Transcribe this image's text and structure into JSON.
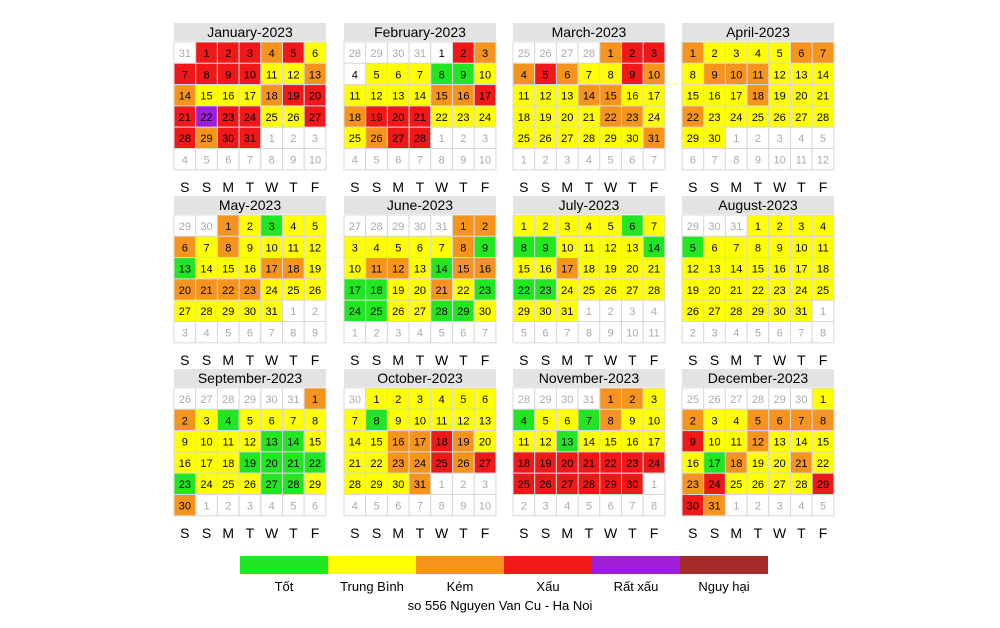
{
  "chart_data": {
    "type": "heatmap",
    "title": "",
    "caption": "so 556 Nguyen Van Cu - Ha Noi",
    "weekday_labels": [
      "S",
      "S",
      "M",
      "T",
      "W",
      "T",
      "F"
    ],
    "colors": {
      "1": "#22e622",
      "2": "#ffff00",
      "3": "#f7941d",
      "4": "#f01818",
      "5": "#9e1dd8",
      "6": "#a52a2a"
    },
    "legend": [
      {
        "level": 1,
        "label": "Tốt"
      },
      {
        "level": 2,
        "label": "Trung Bình"
      },
      {
        "level": 3,
        "label": "Kém"
      },
      {
        "level": 4,
        "label": "Xấu"
      },
      {
        "level": 5,
        "label": "Rất xấu"
      },
      {
        "level": 6,
        "label": "Nguy hại"
      }
    ],
    "months": [
      {
        "title": "January-2023",
        "days": 31,
        "start_weekday": 1,
        "levels": [
          4,
          4,
          4,
          3,
          4,
          2,
          4,
          4,
          4,
          4,
          2,
          2,
          3,
          3,
          2,
          2,
          2,
          3,
          4,
          4,
          4,
          5,
          4,
          4,
          2,
          2,
          4,
          4,
          3,
          4,
          4
        ]
      },
      {
        "title": "February-2023",
        "days": 28,
        "start_weekday": 4,
        "levels": [
          0,
          4,
          3,
          0,
          2,
          2,
          2,
          1,
          1,
          2,
          2,
          2,
          2,
          2,
          3,
          3,
          4,
          3,
          4,
          4,
          4,
          2,
          2,
          2,
          2,
          3,
          4,
          4
        ]
      },
      {
        "title": "March-2023",
        "days": 31,
        "start_weekday": 4,
        "levels": [
          3,
          4,
          4,
          3,
          4,
          3,
          2,
          2,
          4,
          3,
          2,
          2,
          2,
          3,
          3,
          2,
          2,
          2,
          2,
          2,
          2,
          3,
          3,
          2,
          2,
          2,
          2,
          2,
          2,
          2,
          3
        ]
      },
      {
        "title": "April-2023",
        "days": 30,
        "start_weekday": 0,
        "levels": [
          3,
          2,
          2,
          2,
          2,
          3,
          3,
          2,
          3,
          3,
          3,
          2,
          2,
          2,
          2,
          2,
          2,
          3,
          2,
          2,
          2,
          3,
          2,
          2,
          2,
          2,
          2,
          2,
          2,
          2
        ]
      },
      {
        "title": "May-2023",
        "days": 31,
        "start_weekday": 2,
        "levels": [
          3,
          2,
          1,
          2,
          2,
          3,
          2,
          3,
          2,
          2,
          2,
          2,
          1,
          2,
          2,
          2,
          3,
          3,
          2,
          3,
          3,
          3,
          3,
          2,
          2,
          2,
          2,
          2,
          2,
          2,
          2
        ]
      },
      {
        "title": "June-2023",
        "days": 30,
        "start_weekday": 5,
        "levels": [
          3,
          3,
          2,
          2,
          2,
          2,
          2,
          3,
          1,
          2,
          3,
          3,
          2,
          1,
          3,
          3,
          1,
          1,
          2,
          2,
          3,
          2,
          1,
          1,
          1,
          2,
          2,
          1,
          1,
          2
        ]
      },
      {
        "title": "July-2023",
        "days": 31,
        "start_weekday": 0,
        "levels": [
          2,
          2,
          2,
          2,
          2,
          1,
          2,
          1,
          1,
          2,
          2,
          2,
          2,
          1,
          2,
          2,
          3,
          2,
          2,
          2,
          2,
          1,
          1,
          2,
          2,
          2,
          2,
          2,
          2,
          2,
          2
        ]
      },
      {
        "title": "August-2023",
        "days": 31,
        "start_weekday": 3,
        "levels": [
          2,
          2,
          2,
          2,
          1,
          2,
          2,
          2,
          2,
          2,
          2,
          2,
          2,
          2,
          2,
          2,
          2,
          2,
          2,
          2,
          2,
          2,
          2,
          2,
          2,
          2,
          2,
          2,
          2,
          2,
          2
        ]
      },
      {
        "title": "September-2023",
        "days": 30,
        "start_weekday": 6,
        "levels": [
          3,
          3,
          2,
          1,
          2,
          2,
          2,
          2,
          2,
          2,
          2,
          2,
          1,
          1,
          2,
          2,
          2,
          2,
          1,
          1,
          1,
          1,
          1,
          2,
          2,
          2,
          1,
          1,
          2,
          3
        ]
      },
      {
        "title": "October-2023",
        "days": 31,
        "start_weekday": 1,
        "levels": [
          2,
          2,
          2,
          2,
          2,
          2,
          2,
          1,
          2,
          2,
          2,
          2,
          2,
          2,
          2,
          3,
          3,
          4,
          3,
          2,
          2,
          2,
          3,
          3,
          4,
          3,
          4,
          2,
          2,
          2,
          3
        ]
      },
      {
        "title": "November-2023",
        "days": 30,
        "start_weekday": 4,
        "levels": [
          3,
          3,
          2,
          1,
          2,
          2,
          1,
          3,
          2,
          2,
          2,
          2,
          1,
          2,
          2,
          2,
          2,
          4,
          4,
          4,
          4,
          4,
          4,
          4,
          4,
          4,
          4,
          4,
          4,
          4
        ]
      },
      {
        "title": "December-2023",
        "days": 31,
        "start_weekday": 6,
        "levels": [
          2,
          3,
          2,
          2,
          3,
          3,
          3,
          3,
          4,
          2,
          2,
          3,
          2,
          2,
          2,
          2,
          1,
          3,
          2,
          2,
          3,
          2,
          3,
          4,
          2,
          2,
          2,
          2,
          4,
          4,
          3
        ]
      }
    ]
  }
}
